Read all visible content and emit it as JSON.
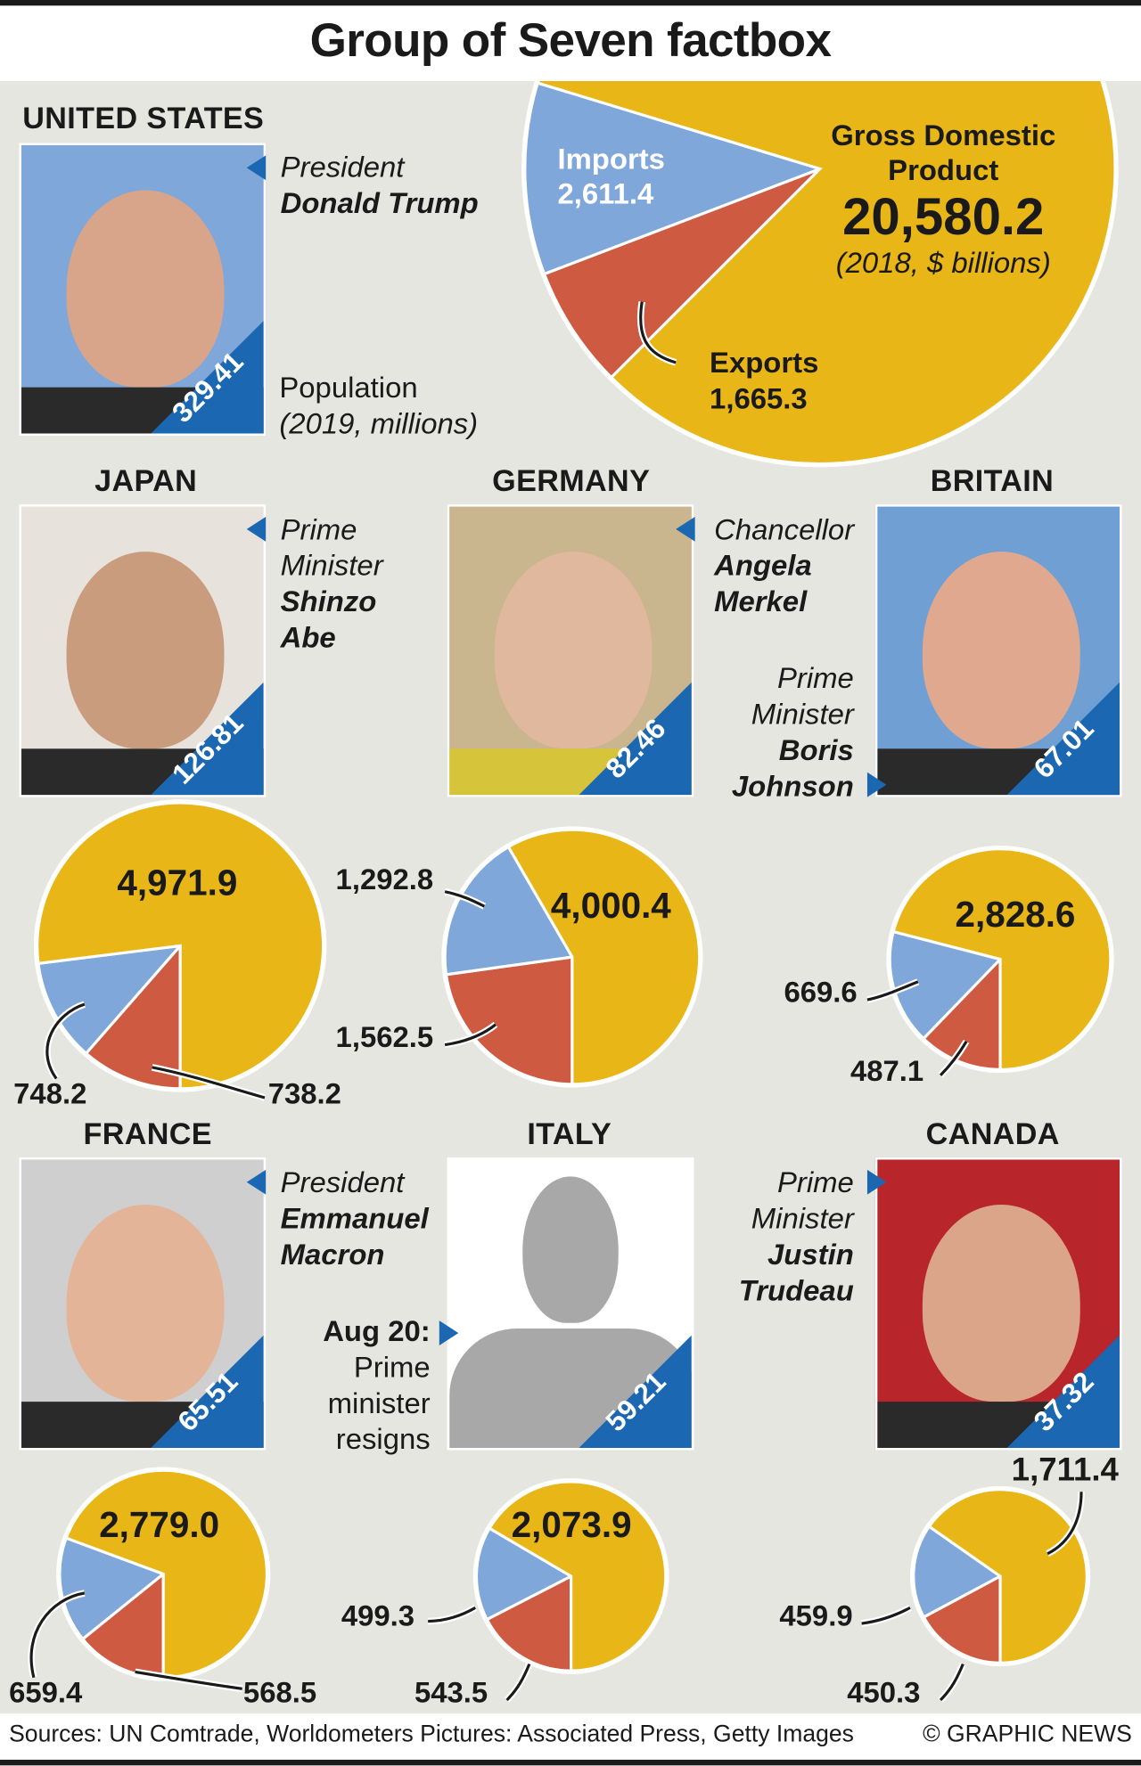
{
  "title": "Group of Seven factbox",
  "colors": {
    "gdp": "#e8b617",
    "imports": "#7fa7d9",
    "exports": "#cd5a41",
    "badge": "#1b67b2",
    "background": "#e6e6e0"
  },
  "us": {
    "country": "UNITED STATES",
    "role": "President",
    "leader": "Donald Trump",
    "population": "329.41",
    "population_label": "Population",
    "population_note": "(2019, millions)",
    "gdp_label_1": "Gross Domestic",
    "gdp_label_2": "Product",
    "gdp": "20,580.2",
    "gdp_note": "(2018, $ billions)",
    "imports_label": "Imports",
    "imports": "2,611.4",
    "exports_label": "Exports",
    "exports": "1,665.3"
  },
  "japan": {
    "country": "JAPAN",
    "role_1": "Prime",
    "role_2": "Minister",
    "leader_1": "Shinzo",
    "leader_2": "Abe",
    "population": "126.81",
    "gdp": "4,971.9",
    "imports": "748.2",
    "exports": "738.2"
  },
  "germany": {
    "country": "GERMANY",
    "role": "Chancellor",
    "leader_1": "Angela",
    "leader_2": "Merkel",
    "population": "82.46",
    "gdp": "4,000.4",
    "imports": "1,292.8",
    "exports": "1,562.5"
  },
  "britain": {
    "country": "BRITAIN",
    "role_1": "Prime",
    "role_2": "Minister",
    "leader_1": "Boris",
    "leader_2": "Johnson",
    "population": "67.01",
    "gdp": "2,828.6",
    "imports": "669.6",
    "exports": "487.1"
  },
  "france": {
    "country": "FRANCE",
    "role": "President",
    "leader_1": "Emmanuel",
    "leader_2": "Macron",
    "population": "65.51",
    "gdp": "2,779.0",
    "imports": "659.4",
    "exports": "568.5"
  },
  "italy": {
    "country": "ITALY",
    "note_date": "Aug 20:",
    "note_1": "Prime",
    "note_2": "minister",
    "note_3": "resigns",
    "population": "59.21",
    "gdp": "2,073.9",
    "imports": "499.3",
    "exports": "543.5"
  },
  "canada": {
    "country": "CANADA",
    "role_1": "Prime",
    "role_2": "Minister",
    "leader_1": "Justin",
    "leader_2": "Trudeau",
    "population": "37.32",
    "gdp": "1,711.4",
    "imports": "459.9",
    "exports": "450.3"
  },
  "footer": {
    "sources": "Sources: UN Comtrade, Worldometers Pictures: Associated Press, Getty Images",
    "credit": "© GRAPHIC NEWS"
  },
  "chart_data": {
    "type": "pie",
    "title": "Group of Seven factbox",
    "units": "2018, $ billions",
    "series_names": [
      "Gross Domestic Product",
      "Imports",
      "Exports"
    ],
    "pies": [
      {
        "country": "United States",
        "gdp": 20580.2,
        "imports": 2611.4,
        "exports": 1665.3,
        "population_millions": 329.41
      },
      {
        "country": "Japan",
        "gdp": 4971.9,
        "imports": 748.2,
        "exports": 738.2,
        "population_millions": 126.81
      },
      {
        "country": "Germany",
        "gdp": 4000.4,
        "imports": 1292.8,
        "exports": 1562.5,
        "population_millions": 82.46
      },
      {
        "country": "Britain",
        "gdp": 2828.6,
        "imports": 669.6,
        "exports": 487.1,
        "population_millions": 67.01
      },
      {
        "country": "France",
        "gdp": 2779.0,
        "imports": 659.4,
        "exports": 568.5,
        "population_millions": 65.51
      },
      {
        "country": "Italy",
        "gdp": 2073.9,
        "imports": 499.3,
        "exports": 543.5,
        "population_millions": 59.21
      },
      {
        "country": "Canada",
        "gdp": 1711.4,
        "imports": 459.9,
        "exports": 450.3,
        "population_millions": 37.32
      }
    ]
  }
}
